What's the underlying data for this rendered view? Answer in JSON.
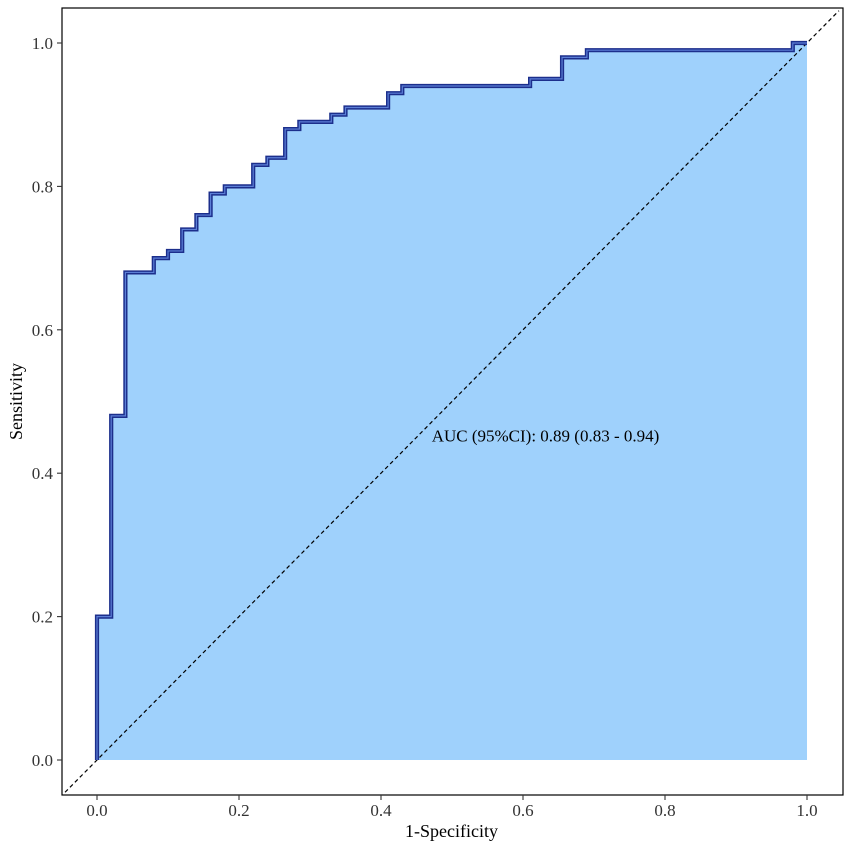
{
  "chart_data": {
    "type": "line",
    "xlabel": "1-Specificity",
    "ylabel": "Sensitivity",
    "xlim": [
      -0.045,
      1.045
    ],
    "ylim": [
      -0.045,
      1.05
    ],
    "x_ticks": [
      {
        "value": 0.0,
        "label": "0.0"
      },
      {
        "value": 0.2,
        "label": "0.2"
      },
      {
        "value": 0.4,
        "label": "0.4"
      },
      {
        "value": 0.6,
        "label": "0.6"
      },
      {
        "value": 0.8,
        "label": "0.8"
      },
      {
        "value": 1.0,
        "label": "1.0"
      }
    ],
    "y_ticks": [
      {
        "value": 0.0,
        "label": "0.0"
      },
      {
        "value": 0.2,
        "label": "0.2"
      },
      {
        "value": 0.4,
        "label": "0.4"
      },
      {
        "value": 0.6,
        "label": "0.6"
      },
      {
        "value": 0.8,
        "label": "0.8"
      },
      {
        "value": 1.0,
        "label": "1.0"
      }
    ],
    "grid": false,
    "reference_line": {
      "x": [
        -0.045,
        1.045
      ],
      "y": [
        -0.045,
        1.045
      ],
      "style": "dashed"
    },
    "series": [
      {
        "line_color": "#1c2f8c",
        "fill_color": "#9fd1fc",
        "x": [
          0.0,
          0.0,
          0.02,
          0.02,
          0.04,
          0.04,
          0.08,
          0.08,
          0.1,
          0.1,
          0.12,
          0.12,
          0.14,
          0.14,
          0.16,
          0.16,
          0.18,
          0.18,
          0.22,
          0.22,
          0.24,
          0.24,
          0.265,
          0.265,
          0.285,
          0.285,
          0.33,
          0.33,
          0.35,
          0.35,
          0.41,
          0.41,
          0.43,
          0.43,
          0.61,
          0.61,
          0.655,
          0.655,
          0.69,
          0.69,
          0.98,
          0.98,
          1.0,
          1.0
        ],
        "y": [
          0.0,
          0.2,
          0.2,
          0.48,
          0.48,
          0.68,
          0.68,
          0.7,
          0.7,
          0.71,
          0.71,
          0.74,
          0.74,
          0.76,
          0.76,
          0.79,
          0.79,
          0.8,
          0.8,
          0.83,
          0.83,
          0.84,
          0.84,
          0.88,
          0.88,
          0.89,
          0.89,
          0.9,
          0.9,
          0.91,
          0.91,
          0.93,
          0.93,
          0.94,
          0.94,
          0.95,
          0.95,
          0.98,
          0.98,
          0.99,
          0.99,
          1.0,
          1.0,
          1.0
        ]
      }
    ],
    "annotations": [
      {
        "text": "AUC (95%CI): 0.89 (0.83 - 0.94)",
        "x": 0.47,
        "y": 0.45
      }
    ]
  }
}
